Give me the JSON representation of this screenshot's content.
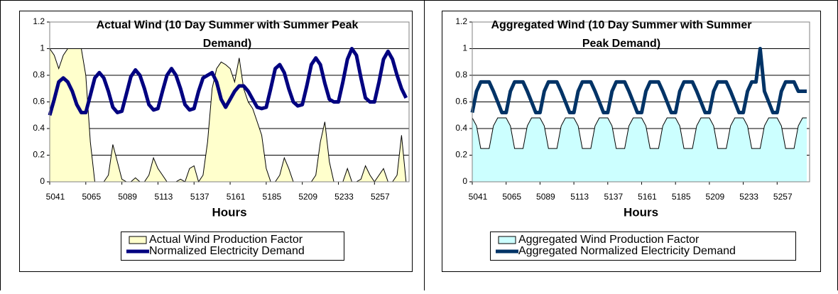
{
  "chart_data": [
    {
      "type": "area-line",
      "title": "Actual Wind (10 Day Summer with Summer Peak Demand)",
      "x_label": "Hours",
      "x": [
        5041,
        5044,
        5047,
        5050,
        5053,
        5056,
        5059,
        5062,
        5065,
        5068,
        5071,
        5074,
        5077,
        5080,
        5083,
        5086,
        5089,
        5092,
        5095,
        5098,
        5101,
        5104,
        5107,
        5110,
        5113,
        5116,
        5119,
        5122,
        5125,
        5128,
        5131,
        5134,
        5137,
        5140,
        5143,
        5146,
        5149,
        5152,
        5155,
        5158,
        5161,
        5164,
        5167,
        5170,
        5173,
        5176,
        5179,
        5182,
        5185,
        5188,
        5191,
        5194,
        5197,
        5200,
        5203,
        5206,
        5209,
        5212,
        5215,
        5218,
        5221,
        5224,
        5227,
        5230,
        5233,
        5236,
        5239,
        5242,
        5245,
        5248,
        5251,
        5254,
        5257,
        5260,
        5263,
        5266,
        5269,
        5272,
        5275,
        5278
      ],
      "xlim": [
        5041,
        5280
      ],
      "xticks": [
        5041,
        5065,
        5089,
        5113,
        5137,
        5161,
        5185,
        5209,
        5233,
        5257
      ],
      "ylim": [
        0,
        1.2
      ],
      "yticks": [
        0,
        0.2,
        0.4,
        0.6,
        0.8,
        1,
        1.2
      ],
      "grid": true,
      "legend": "bottom",
      "series": [
        {
          "name": "Actual Wind Production Factor",
          "type": "area",
          "color": "#ffffcc",
          "values": [
            1.0,
            0.95,
            0.85,
            0.95,
            1.0,
            1.0,
            1.0,
            1.0,
            0.8,
            0.3,
            0.0,
            0.0,
            0.0,
            0.05,
            0.28,
            0.15,
            0.02,
            0.0,
            0.0,
            0.03,
            0.0,
            0.0,
            0.05,
            0.18,
            0.1,
            0.05,
            0.0,
            0.0,
            0.0,
            0.02,
            0.0,
            0.1,
            0.12,
            0.0,
            0.05,
            0.3,
            0.7,
            0.85,
            0.9,
            0.88,
            0.85,
            0.75,
            0.93,
            0.7,
            0.6,
            0.55,
            0.45,
            0.35,
            0.1,
            0.0,
            0.0,
            0.05,
            0.18,
            0.1,
            0.0,
            0.0,
            0.0,
            0.0,
            0.0,
            0.05,
            0.3,
            0.45,
            0.15,
            0.0,
            0.0,
            0.0,
            0.1,
            0.0,
            0.0,
            0.02,
            0.12,
            0.05,
            0.0,
            0.05,
            0.1,
            0.0,
            0.0,
            0.05,
            0.35,
            0.0
          ]
        },
        {
          "name": "Normalized Electricity Demand",
          "type": "line",
          "color": "#000080",
          "values": [
            0.5,
            0.62,
            0.75,
            0.78,
            0.75,
            0.68,
            0.58,
            0.52,
            0.52,
            0.65,
            0.78,
            0.82,
            0.78,
            0.68,
            0.56,
            0.52,
            0.53,
            0.66,
            0.79,
            0.84,
            0.8,
            0.7,
            0.58,
            0.54,
            0.55,
            0.68,
            0.8,
            0.85,
            0.8,
            0.7,
            0.58,
            0.54,
            0.55,
            0.68,
            0.78,
            0.8,
            0.82,
            0.75,
            0.62,
            0.56,
            0.62,
            0.68,
            0.72,
            0.72,
            0.68,
            0.62,
            0.56,
            0.55,
            0.56,
            0.7,
            0.85,
            0.88,
            0.82,
            0.7,
            0.6,
            0.57,
            0.58,
            0.72,
            0.88,
            0.93,
            0.88,
            0.74,
            0.62,
            0.6,
            0.6,
            0.75,
            0.92,
            1.0,
            0.95,
            0.78,
            0.63,
            0.6,
            0.6,
            0.75,
            0.92,
            0.98,
            0.92,
            0.8,
            0.7,
            0.63
          ]
        }
      ]
    },
    {
      "type": "area-line",
      "title": "Aggregated Wind (10 Day Summer with Summer Peak Demand)",
      "x_label": "Hours",
      "x": [
        5041,
        5044,
        5047,
        5050,
        5053,
        5056,
        5059,
        5062,
        5065,
        5068,
        5071,
        5074,
        5077,
        5080,
        5083,
        5086,
        5089,
        5092,
        5095,
        5098,
        5101,
        5104,
        5107,
        5110,
        5113,
        5116,
        5119,
        5122,
        5125,
        5128,
        5131,
        5134,
        5137,
        5140,
        5143,
        5146,
        5149,
        5152,
        5155,
        5158,
        5161,
        5164,
        5167,
        5170,
        5173,
        5176,
        5179,
        5182,
        5185,
        5188,
        5191,
        5194,
        5197,
        5200,
        5203,
        5206,
        5209,
        5212,
        5215,
        5218,
        5221,
        5224,
        5227,
        5230,
        5233,
        5236,
        5239,
        5242,
        5245,
        5248,
        5251,
        5254,
        5257,
        5260,
        5263,
        5266,
        5269,
        5272,
        5275,
        5278
      ],
      "xlim": [
        5041,
        5280
      ],
      "xticks": [
        5041,
        5065,
        5089,
        5113,
        5137,
        5161,
        5185,
        5209,
        5233,
        5257
      ],
      "ylim": [
        0,
        1.2
      ],
      "yticks": [
        0,
        0.2,
        0.4,
        0.6,
        0.8,
        1,
        1.2
      ],
      "grid": true,
      "legend": "bottom",
      "series": [
        {
          "name": "Aggregated Wind Production Factor",
          "type": "area",
          "color": "#ccffff",
          "values": [
            0.48,
            0.42,
            0.25,
            0.25,
            0.25,
            0.42,
            0.48,
            0.48,
            0.48,
            0.42,
            0.25,
            0.25,
            0.25,
            0.42,
            0.48,
            0.48,
            0.48,
            0.42,
            0.25,
            0.25,
            0.25,
            0.42,
            0.48,
            0.48,
            0.48,
            0.42,
            0.25,
            0.25,
            0.25,
            0.42,
            0.48,
            0.48,
            0.48,
            0.42,
            0.25,
            0.25,
            0.25,
            0.42,
            0.48,
            0.48,
            0.48,
            0.42,
            0.25,
            0.25,
            0.25,
            0.42,
            0.48,
            0.48,
            0.48,
            0.42,
            0.25,
            0.25,
            0.25,
            0.42,
            0.48,
            0.48,
            0.48,
            0.42,
            0.25,
            0.25,
            0.25,
            0.42,
            0.48,
            0.48,
            0.48,
            0.42,
            0.25,
            0.25,
            0.25,
            0.42,
            0.48,
            0.48,
            0.48,
            0.42,
            0.25,
            0.25,
            0.25,
            0.42,
            0.48,
            0.48
          ]
        },
        {
          "name": "Aggregated Normalized Electricity Demand",
          "type": "line",
          "color": "#003366",
          "values": [
            0.52,
            0.68,
            0.75,
            0.75,
            0.75,
            0.68,
            0.6,
            0.52,
            0.52,
            0.68,
            0.75,
            0.75,
            0.75,
            0.68,
            0.6,
            0.52,
            0.52,
            0.68,
            0.75,
            0.75,
            0.75,
            0.68,
            0.6,
            0.52,
            0.52,
            0.68,
            0.75,
            0.75,
            0.75,
            0.68,
            0.6,
            0.52,
            0.52,
            0.68,
            0.75,
            0.75,
            0.75,
            0.68,
            0.6,
            0.52,
            0.52,
            0.68,
            0.75,
            0.75,
            0.75,
            0.68,
            0.6,
            0.52,
            0.52,
            0.68,
            0.75,
            0.75,
            0.75,
            0.68,
            0.6,
            0.52,
            0.52,
            0.68,
            0.75,
            0.75,
            0.75,
            0.68,
            0.6,
            0.52,
            0.52,
            0.68,
            0.75,
            0.75,
            1.0,
            0.68,
            0.6,
            0.52,
            0.52,
            0.68,
            0.75,
            0.75,
            0.75,
            0.68,
            0.68,
            0.68
          ]
        }
      ]
    }
  ]
}
